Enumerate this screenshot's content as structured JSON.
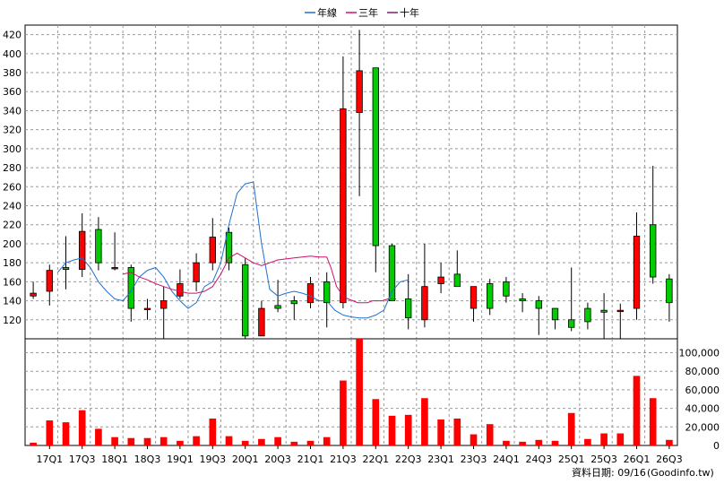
{
  "legend": [
    {
      "label": "年線",
      "color": "#1f6fd0"
    },
    {
      "label": "三年",
      "color": "#d0106a"
    },
    {
      "label": "十年",
      "color": "#8a1a6a"
    }
  ],
  "footer": {
    "date_label": "資料日期: 09/16",
    "source": "(Goodinfo.tw)"
  },
  "chart_data": [
    {
      "type": "candlestick",
      "ylim": [
        100,
        430
      ],
      "yticks": [
        120,
        140,
        160,
        180,
        200,
        220,
        240,
        260,
        280,
        300,
        320,
        340,
        360,
        380,
        400,
        420
      ],
      "ytick_labels": [
        "120",
        "140",
        "160",
        "180",
        "200",
        "220",
        "240",
        "260",
        "280",
        "300",
        "320",
        "340",
        "360",
        "380",
        "400",
        "420"
      ],
      "x_tick_labels": [
        "17Q1",
        "17Q3",
        "18Q1",
        "18Q3",
        "19Q1",
        "19Q3",
        "20Q1",
        "20Q3",
        "21Q1",
        "21Q3",
        "22Q1",
        "22Q3",
        "23Q1",
        "23Q3",
        "24Q1",
        "24Q3",
        "25Q1",
        "25Q3",
        "26Q1",
        "26Q3"
      ],
      "x_tick_positions": [
        1,
        3,
        5,
        7,
        9,
        11,
        13,
        15,
        17,
        19,
        21,
        23,
        25,
        27,
        29,
        31,
        33,
        35,
        37,
        39
      ],
      "grid": true,
      "candles": [
        {
          "open": 145,
          "high": 160,
          "low": 142,
          "close": 148
        },
        {
          "open": 150,
          "high": 178,
          "low": 135,
          "close": 172
        },
        {
          "open": 175,
          "high": 208,
          "low": 152,
          "close": 173
        },
        {
          "open": 173,
          "high": 232,
          "low": 165,
          "close": 213
        },
        {
          "open": 215,
          "high": 228,
          "low": 172,
          "close": 180
        },
        {
          "open": 175,
          "high": 212,
          "low": 172,
          "close": 175
        },
        {
          "open": 175,
          "high": 178,
          "low": 118,
          "close": 132
        },
        {
          "open": 132,
          "high": 142,
          "low": 120,
          "close": 132
        },
        {
          "open": 132,
          "high": 155,
          "low": 92,
          "close": 140
        },
        {
          "open": 145,
          "high": 173,
          "low": 142,
          "close": 158
        },
        {
          "open": 160,
          "high": 190,
          "low": 150,
          "close": 180
        },
        {
          "open": 180,
          "high": 227,
          "low": 172,
          "close": 207
        },
        {
          "open": 212,
          "high": 217,
          "low": 172,
          "close": 180
        },
        {
          "open": 178,
          "high": 185,
          "low": 86,
          "close": 103
        },
        {
          "open": 103,
          "high": 140,
          "low": 103,
          "close": 132
        },
        {
          "open": 135,
          "high": 162,
          "low": 128,
          "close": 132
        },
        {
          "open": 140,
          "high": 145,
          "low": 120,
          "close": 137
        },
        {
          "open": 138,
          "high": 165,
          "low": 132,
          "close": 158
        },
        {
          "open": 160,
          "high": 170,
          "low": 112,
          "close": 138
        },
        {
          "open": 138,
          "high": 397,
          "low": 132,
          "close": 342
        },
        {
          "open": 338,
          "high": 425,
          "low": 250,
          "close": 382
        },
        {
          "open": 385,
          "high": 385,
          "low": 170,
          "close": 198
        },
        {
          "open": 198,
          "high": 200,
          "low": 140,
          "close": 140
        },
        {
          "open": 142,
          "high": 168,
          "low": 110,
          "close": 122
        },
        {
          "open": 120,
          "high": 200,
          "low": 112,
          "close": 155
        },
        {
          "open": 158,
          "high": 180,
          "low": 148,
          "close": 165
        },
        {
          "open": 168,
          "high": 193,
          "low": 155,
          "close": 155
        },
        {
          "open": 132,
          "high": 155,
          "low": 118,
          "close": 155
        },
        {
          "open": 158,
          "high": 163,
          "low": 125,
          "close": 132
        },
        {
          "open": 160,
          "high": 165,
          "low": 138,
          "close": 145
        },
        {
          "open": 142,
          "high": 148,
          "low": 128,
          "close": 140
        },
        {
          "open": 140,
          "high": 145,
          "low": 104,
          "close": 132
        },
        {
          "open": 132,
          "high": 132,
          "low": 110,
          "close": 120
        },
        {
          "open": 120,
          "high": 175,
          "low": 108,
          "close": 112
        },
        {
          "open": 132,
          "high": 138,
          "low": 110,
          "close": 118
        },
        {
          "open": 130,
          "high": 148,
          "low": 85,
          "close": 128
        },
        {
          "open": 130,
          "high": 137,
          "low": 98,
          "close": 130
        },
        {
          "open": 132,
          "high": 233,
          "low": 120,
          "close": 208
        },
        {
          "open": 220,
          "high": 282,
          "low": 158,
          "close": 165
        },
        {
          "open": 163,
          "high": 168,
          "low": 118,
          "close": 138
        }
      ],
      "annual_line": [
        null,
        null,
        null,
        170,
        180,
        183,
        185,
        175,
        160,
        150,
        142,
        140,
        150,
        165,
        172,
        175,
        165,
        150,
        140,
        132,
        138,
        155,
        160,
        180,
        220,
        253,
        263,
        265,
        200,
        152,
        145,
        148,
        150,
        148,
        145,
        140,
        140,
        130,
        125,
        123,
        122,
        122,
        125,
        130,
        150,
        160,
        162
      ],
      "annual_line_x": [
        0,
        1,
        2,
        3,
        4,
        5,
        6,
        7,
        8,
        9,
        10,
        11,
        12,
        13,
        14,
        15,
        16,
        17,
        18,
        19,
        20,
        21,
        22,
        23,
        24,
        25,
        26,
        27,
        28,
        29,
        30,
        31,
        32,
        33,
        34,
        35,
        36,
        37,
        38,
        39,
        40,
        41,
        42,
        43,
        44,
        45,
        46
      ],
      "three_year_line": [
        168,
        170,
        165,
        162,
        158,
        155,
        152,
        150,
        148,
        148,
        150,
        155,
        168,
        185,
        190,
        185,
        180,
        177,
        180,
        183,
        184,
        185,
        186,
        187,
        186,
        186,
        175,
        155,
        145,
        142,
        140,
        138,
        138,
        138,
        140,
        140,
        140,
        142,
        142
      ],
      "three_year_line_x": [
        11,
        12,
        13,
        14,
        15,
        16,
        17,
        18,
        19,
        20,
        21,
        22,
        23,
        24,
        25,
        26,
        27,
        28,
        29,
        30,
        31,
        32,
        33,
        34,
        35,
        36,
        36.5,
        37.2,
        38,
        38.6,
        39.2,
        39.8,
        40.4,
        41,
        41.6,
        42.2,
        42.8,
        43.5,
        44.5
      ]
    },
    {
      "type": "bar",
      "ylim": [
        0,
        115000
      ],
      "yticks": [
        0,
        20000,
        40000,
        60000,
        80000,
        100000
      ],
      "ytick_labels": [
        "0",
        "20,000",
        "40,000",
        "60,000",
        "80,000",
        "100,000"
      ],
      "values": [
        3000,
        27000,
        25000,
        38000,
        18000,
        9000,
        8000,
        8000,
        9000,
        5000,
        10000,
        29000,
        10000,
        5000,
        7000,
        9000,
        4000,
        5000,
        9000,
        70000,
        115000,
        50000,
        32000,
        33000,
        51000,
        28000,
        29000,
        12000,
        23000,
        5000,
        4000,
        6000,
        5000,
        35000,
        7000,
        13000,
        13000,
        75000,
        51000,
        6000
      ],
      "color": "#ff0000"
    }
  ]
}
